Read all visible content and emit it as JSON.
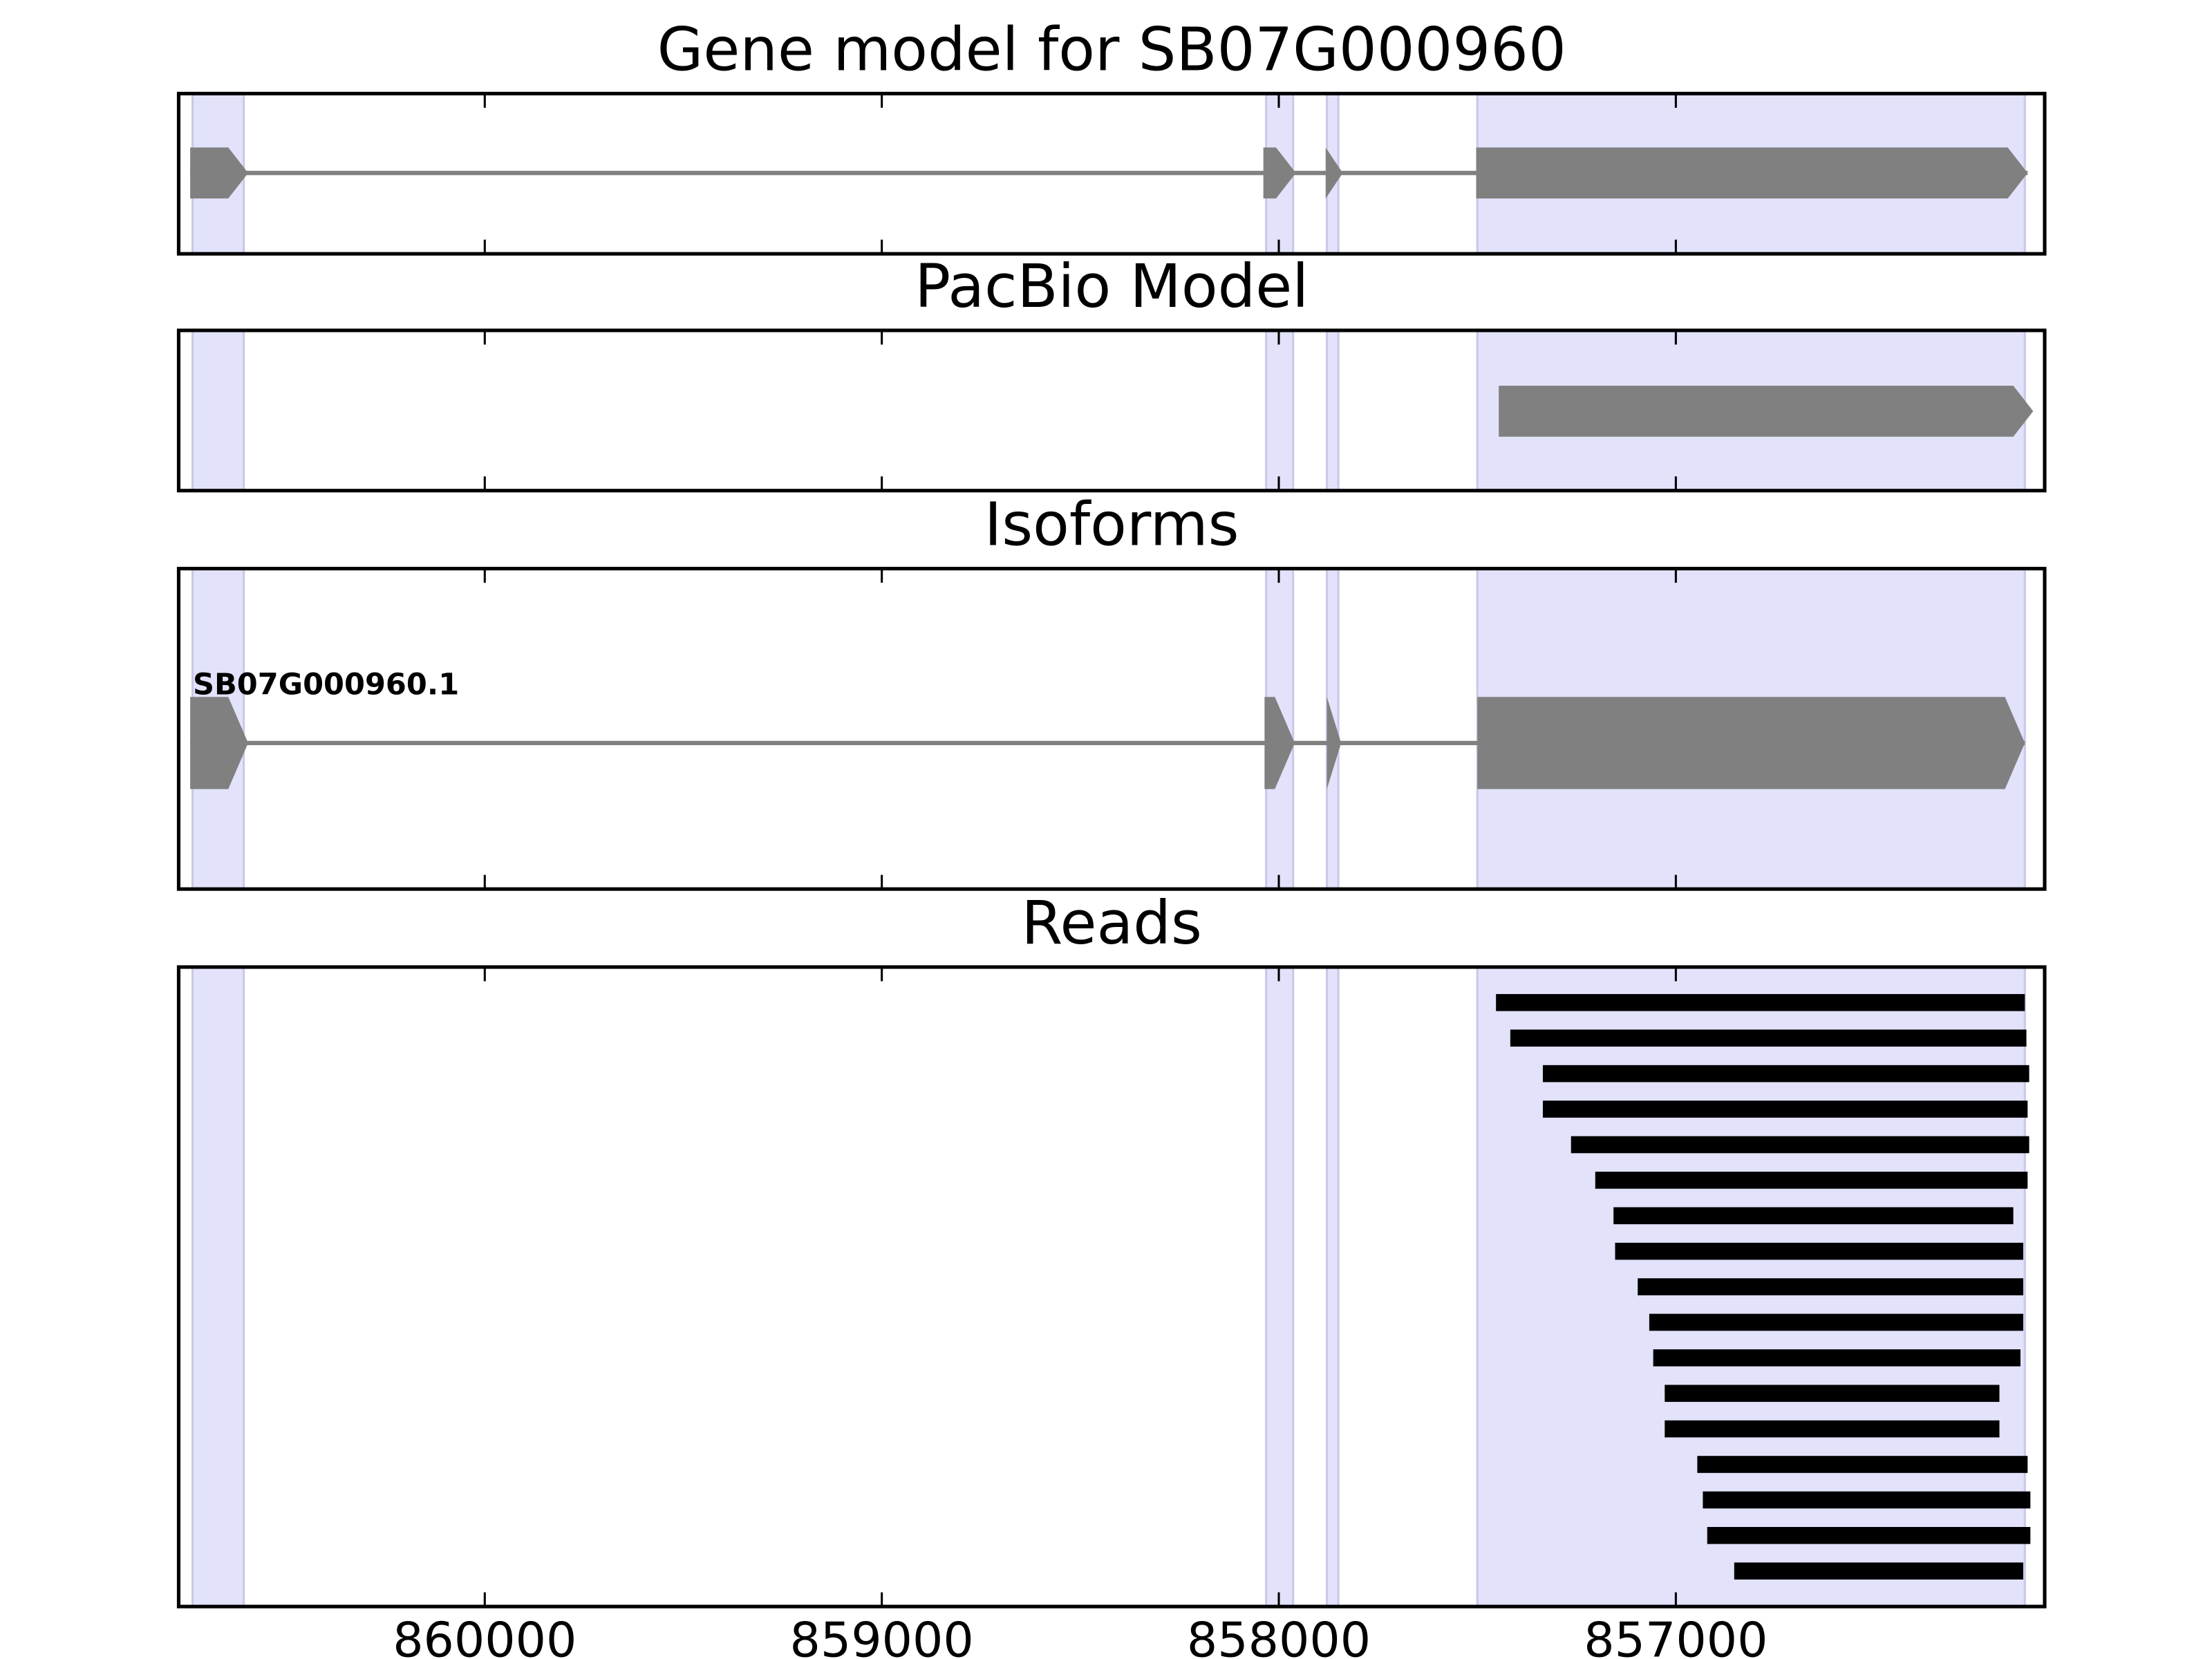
{
  "chart_data": [
    {
      "type": "gene_model",
      "title": "Gene model for SB07G000960",
      "xlim": [
        860771,
        856071
      ],
      "xticks": [
        860000,
        859000,
        858000,
        857000
      ],
      "highlights": [
        [
          860736,
          860607
        ],
        [
          858032,
          857964
        ],
        [
          857879,
          857850
        ],
        [
          857500,
          856121
        ]
      ],
      "highlight_color": "#e2e2fb",
      "color": "#808080",
      "exons": [
        [
          860742,
          860596
        ],
        [
          858039,
          857957
        ],
        [
          857882,
          857839
        ],
        [
          857503,
          856114
        ]
      ]
    },
    {
      "type": "gene_model",
      "title": "PacBio Model",
      "xlim": [
        860771,
        856071
      ],
      "xticks": [
        860000,
        859000,
        858000,
        857000
      ],
      "highlights": [
        [
          860736,
          860607
        ],
        [
          858032,
          857964
        ],
        [
          857879,
          857850
        ],
        [
          857500,
          856121
        ]
      ],
      "highlight_color": "#e2e2fb",
      "color": "#808080",
      "exons": [
        [
          857446,
          856100
        ]
      ]
    },
    {
      "type": "gene_model",
      "title": "Isoforms",
      "name": "SB07G000960.1",
      "xlim": [
        860771,
        856071
      ],
      "xticks": [
        860000,
        859000,
        858000,
        857000
      ],
      "highlights": [
        [
          860736,
          860607
        ],
        [
          858032,
          857964
        ],
        [
          857879,
          857850
        ],
        [
          857500,
          856121
        ]
      ],
      "highlight_color": "#e2e2fb",
      "color": "#808080",
      "exons": [
        [
          860742,
          860596
        ],
        [
          858036,
          857960
        ],
        [
          857879,
          857843
        ],
        [
          857500,
          856121
        ]
      ]
    },
    {
      "type": "reads",
      "title": "Reads",
      "xlim": [
        860771,
        856071
      ],
      "xticks": [
        860000,
        859000,
        858000,
        857000
      ],
      "highlights": [
        [
          860736,
          860607
        ],
        [
          858032,
          857964
        ],
        [
          857879,
          857850
        ],
        [
          857500,
          856121
        ]
      ],
      "highlight_color": "#e2e2fb",
      "color": "#000000",
      "reads": [
        [
          857453,
          856121
        ],
        [
          857417,
          856117
        ],
        [
          857335,
          856110
        ],
        [
          857335,
          856114
        ],
        [
          857264,
          856110
        ],
        [
          857203,
          856114
        ],
        [
          857157,
          856150
        ],
        [
          857153,
          856125
        ],
        [
          857096,
          856125
        ],
        [
          857067,
          856125
        ],
        [
          857057,
          856132
        ],
        [
          857028,
          856185
        ],
        [
          857028,
          856185
        ],
        [
          856946,
          856114
        ],
        [
          856932,
          856107
        ],
        [
          856921,
          856107
        ],
        [
          856853,
          856125
        ]
      ]
    }
  ]
}
